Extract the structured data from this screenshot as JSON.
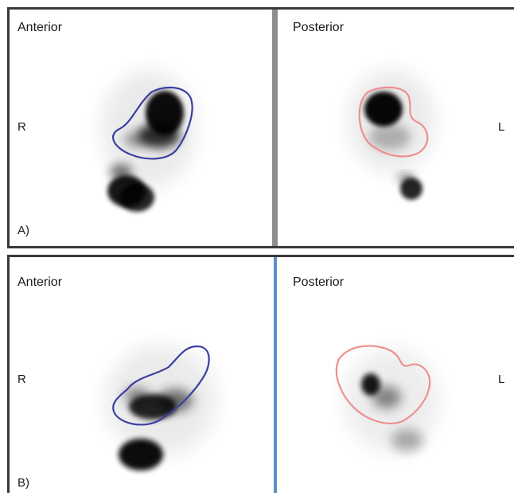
{
  "panels": [
    {
      "letter": "A)",
      "anterior_label": "Anterior",
      "posterior_label": "Posterior",
      "right_marker": "R",
      "left_marker": "L"
    },
    {
      "letter": "B)",
      "anterior_label": "Anterior",
      "posterior_label": "Posterior",
      "right_marker": "R",
      "left_marker": "L"
    }
  ],
  "colors": {
    "anterior_roi": "#3b3fa0",
    "posterior_roi": "#ee8f8f",
    "divider_a": "#8e8e8e",
    "divider_b": "#5b8fc7",
    "frame": "#3a3a3a"
  }
}
